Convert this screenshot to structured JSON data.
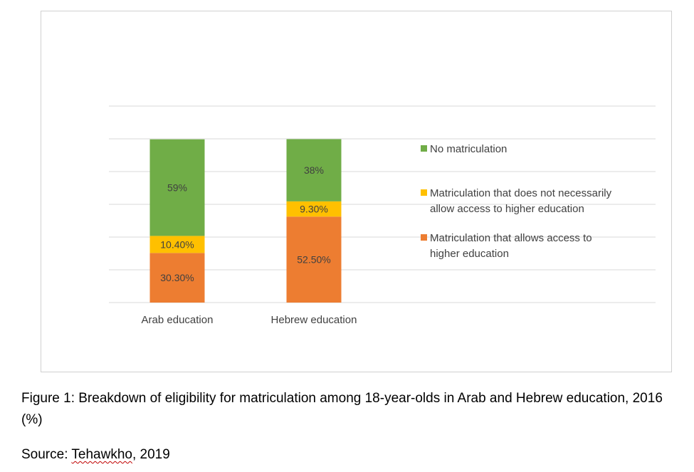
{
  "chart_data": {
    "type": "bar",
    "stacked": true,
    "categories": [
      "Arab education",
      "Hebrew education"
    ],
    "series": [
      {
        "name": "Matriculation that allows access to higher education",
        "values": [
          30.3,
          52.5
        ],
        "labels": [
          "30.30%",
          "52.50%"
        ],
        "color": "#ED7D31"
      },
      {
        "name": "Matriculation that does not necessarily allow access to higher education",
        "values": [
          10.4,
          9.3
        ],
        "labels": [
          "10.40%",
          "9.30%"
        ],
        "color": "#FFC000"
      },
      {
        "name": "No matriculation",
        "values": [
          59,
          38
        ],
        "labels": [
          "59%",
          "38%"
        ],
        "color": "#70AD47"
      }
    ],
    "legend": [
      {
        "lines": [
          "No matriculation"
        ],
        "color": "#70AD47"
      },
      {
        "lines": [
          "Matriculation that does not necessarily",
          "allow access to higher education"
        ],
        "color": "#FFC000"
      },
      {
        "lines": [
          "Matriculation that allows access to",
          "higher education"
        ],
        "color": "#ED7D31"
      }
    ],
    "ylim": [
      0,
      100
    ],
    "grid": true,
    "legend_position": "right"
  },
  "caption": {
    "figure": "Figure 1: Breakdown of eligibility for matriculation among 18-year-olds in Arab and Hebrew education, 2016 (%)",
    "source_prefix": "Source: ",
    "source_name": "Tehawkho",
    "source_suffix": ", 2019"
  }
}
